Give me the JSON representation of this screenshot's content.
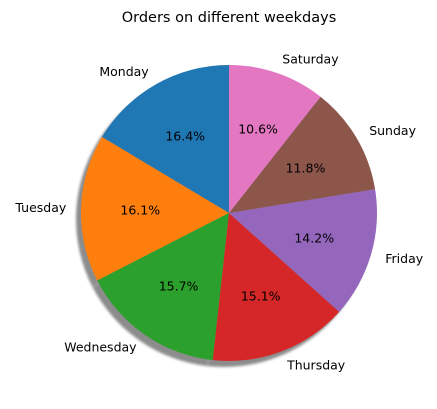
{
  "chart_data": {
    "type": "pie",
    "title": "Orders on different weekdays",
    "start_angle_deg": 90,
    "direction": "counterclockwise",
    "shadow": true,
    "slices": [
      {
        "label": "Monday",
        "percent": 16.4,
        "pct_text": "16.4%",
        "color": "#1f77b4"
      },
      {
        "label": "Tuesday",
        "percent": 16.1,
        "pct_text": "16.1%",
        "color": "#ff7f0e"
      },
      {
        "label": "Wednesday",
        "percent": 15.7,
        "pct_text": "15.7%",
        "color": "#2ca02c"
      },
      {
        "label": "Thursday",
        "percent": 15.1,
        "pct_text": "15.1%",
        "color": "#d62728"
      },
      {
        "label": "Friday",
        "percent": 14.2,
        "pct_text": "14.2%",
        "color": "#9467bd"
      },
      {
        "label": "Sunday",
        "percent": 11.8,
        "pct_text": "11.8%",
        "color": "#8c564b"
      },
      {
        "label": "Saturday",
        "percent": 10.6,
        "pct_text": "10.6%",
        "color": "#e377c2"
      }
    ]
  }
}
